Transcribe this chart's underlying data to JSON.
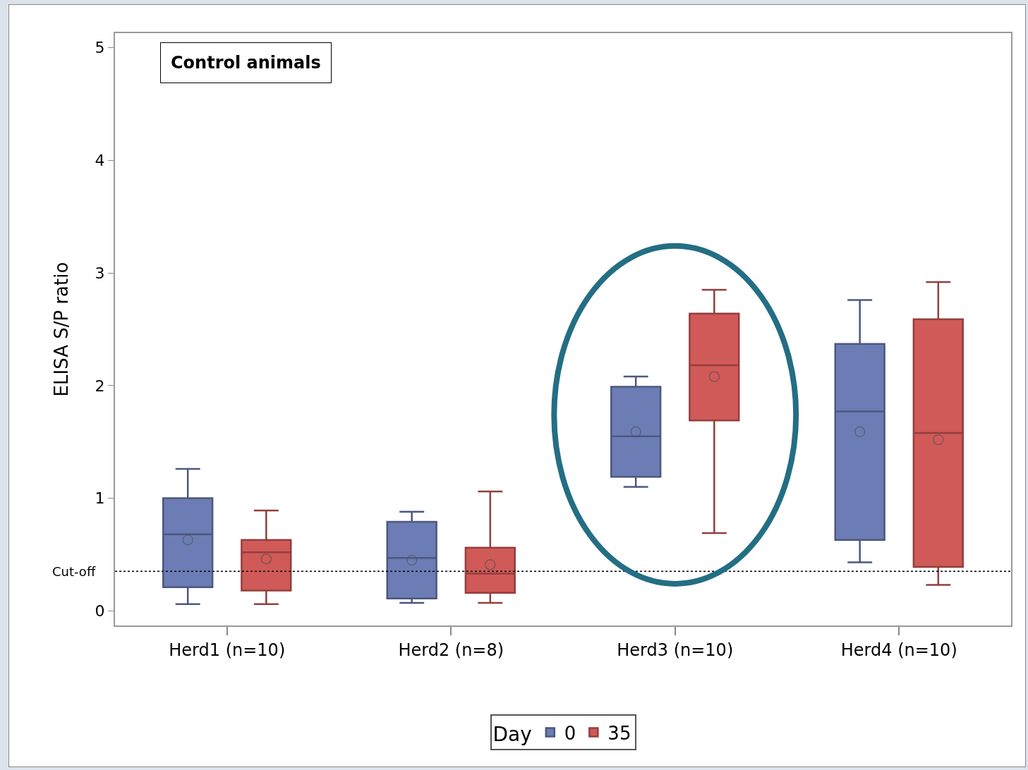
{
  "chart_data": {
    "type": "box",
    "ylabel": "ELISA S/P ratio",
    "categories": [
      "Herd1 (n=10)",
      "Herd2 (n=8)",
      "Herd3 (n=10)",
      "Herd4 (n=10)"
    ],
    "legend_title": "Day",
    "legend": "bottom",
    "grid": false,
    "marker": "circle",
    "ylim": [
      -0.13,
      5.13
    ],
    "yticks": [
      0,
      1,
      2,
      3,
      4,
      5
    ],
    "annotations": [
      "Control animals"
    ],
    "ref_lines": [
      {
        "axis": "y",
        "value": 0.35,
        "label": "Cut-off",
        "color": "#000000",
        "line_style": "dotted"
      }
    ],
    "series": [
      {
        "name": "0",
        "color": "#6c7db5",
        "boxes": [
          {
            "low": 0.06,
            "q1": 0.21,
            "median": 0.68,
            "q3": 1.0,
            "high": 1.26,
            "mean": 0.63
          },
          {
            "low": 0.07,
            "q1": 0.11,
            "median": 0.47,
            "q3": 0.79,
            "high": 0.88,
            "mean": 0.45
          },
          {
            "low": 1.1,
            "q1": 1.19,
            "median": 1.55,
            "q3": 1.99,
            "high": 2.08,
            "mean": 1.59
          },
          {
            "low": 0.43,
            "q1": 0.63,
            "median": 1.77,
            "q3": 2.37,
            "high": 2.76,
            "mean": 1.59
          }
        ]
      },
      {
        "name": "35",
        "color": "#d05a58",
        "boxes": [
          {
            "low": 0.06,
            "q1": 0.18,
            "median": 0.52,
            "q3": 0.63,
            "high": 0.89,
            "mean": 0.46
          },
          {
            "low": 0.07,
            "q1": 0.16,
            "median": 0.33,
            "q3": 0.56,
            "high": 1.06,
            "mean": 0.41
          },
          {
            "low": 0.69,
            "q1": 1.69,
            "median": 2.18,
            "q3": 2.64,
            "high": 2.85,
            "mean": 2.08
          },
          {
            "low": 0.23,
            "q1": 0.39,
            "median": 1.58,
            "q3": 2.59,
            "high": 2.92,
            "mean": 1.52
          }
        ]
      }
    ]
  }
}
